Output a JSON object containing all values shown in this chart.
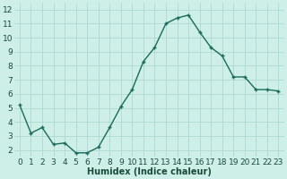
{
  "x": [
    0,
    1,
    2,
    3,
    4,
    5,
    6,
    7,
    8,
    9,
    10,
    11,
    12,
    13,
    14,
    15,
    16,
    17,
    18,
    19,
    20,
    21,
    22,
    23
  ],
  "y": [
    5.2,
    3.2,
    3.6,
    2.4,
    2.5,
    1.8,
    1.8,
    2.2,
    3.6,
    5.1,
    6.3,
    8.3,
    9.3,
    11.0,
    11.4,
    11.6,
    10.4,
    9.3,
    8.7,
    7.2,
    7.2,
    6.3,
    6.3,
    6.2
  ],
  "line_color": "#1a6b5a",
  "marker": "+",
  "marker_size": 3,
  "line_width": 1.0,
  "xlabel": "Humidex (Indice chaleur)",
  "xlim": [
    -0.5,
    23.5
  ],
  "ylim": [
    1.5,
    12.5
  ],
  "yticks": [
    2,
    3,
    4,
    5,
    6,
    7,
    8,
    9,
    10,
    11,
    12
  ],
  "xticks": [
    0,
    1,
    2,
    3,
    4,
    5,
    6,
    7,
    8,
    9,
    10,
    11,
    12,
    13,
    14,
    15,
    16,
    17,
    18,
    19,
    20,
    21,
    22,
    23
  ],
  "bg_color": "#ceeee8",
  "grid_color": "#a8d5cf",
  "text_color": "#1a4a3a",
  "xlabel_fontsize": 7,
  "tick_fontsize": 6.5
}
